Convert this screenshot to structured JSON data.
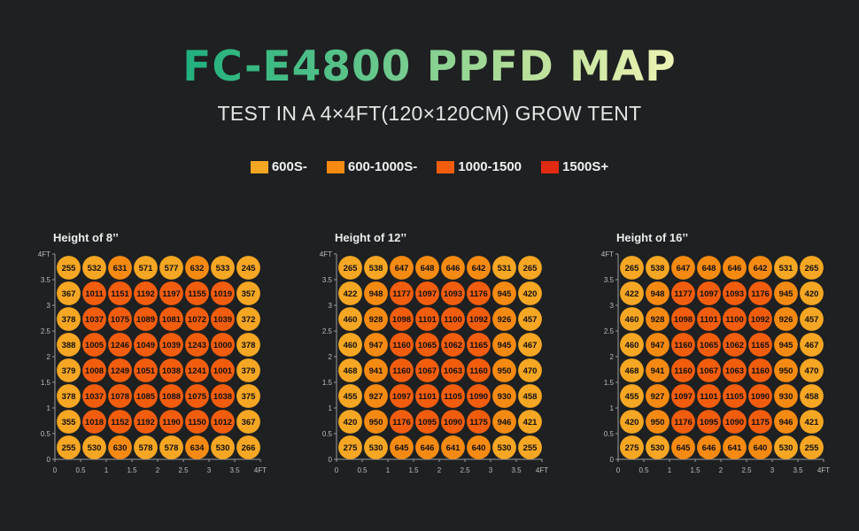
{
  "page": {
    "title": "FC-E4800 PPFD MAP",
    "subtitle": "TEST IN A 4×4FT(120×120CM) GROW TENT"
  },
  "legend": [
    {
      "label": "600S-",
      "color": "#f5a623"
    },
    {
      "label": "600-1000S-",
      "color": "#f58a12"
    },
    {
      "label": "1000-1500",
      "color": "#f25d0d"
    },
    {
      "label": "1500S+",
      "color": "#e02a12"
    }
  ],
  "chart_data": [
    {
      "type": "heatmap",
      "title": "Height of 8’’",
      "x_ticks": [
        "0",
        "0.5",
        "1",
        "1.5",
        "2",
        "2.5",
        "3",
        "3.5",
        "4FT"
      ],
      "y_ticks": [
        "0",
        "0.5",
        "1",
        "1.5",
        "2",
        "2.5",
        "3",
        "3.5",
        "4FT"
      ],
      "ylim": [
        0,
        4
      ],
      "xlim": [
        0,
        4
      ],
      "values": [
        [
          255,
          532,
          631,
          571,
          577,
          632,
          533,
          245
        ],
        [
          367,
          1011,
          1151,
          1192,
          1197,
          1155,
          1019,
          357
        ],
        [
          378,
          1037,
          1075,
          1089,
          1081,
          1072,
          1039,
          372
        ],
        [
          388,
          1005,
          1246,
          1049,
          1039,
          1243,
          1000,
          378
        ],
        [
          379,
          1008,
          1249,
          1051,
          1038,
          1241,
          1001,
          379
        ],
        [
          378,
          1037,
          1078,
          1085,
          1088,
          1075,
          1038,
          375
        ],
        [
          355,
          1018,
          1152,
          1192,
          1190,
          1150,
          1012,
          367
        ],
        [
          255,
          530,
          630,
          578,
          578,
          634,
          530,
          266
        ]
      ]
    },
    {
      "type": "heatmap",
      "title": "Height of 12’’",
      "x_ticks": [
        "0",
        "0.5",
        "1",
        "1.5",
        "2",
        "2.5",
        "3",
        "3.5",
        "4FT"
      ],
      "y_ticks": [
        "0",
        "0.5",
        "1",
        "1.5",
        "2",
        "2.5",
        "3",
        "3.5",
        "4FT"
      ],
      "ylim": [
        0,
        4
      ],
      "xlim": [
        0,
        4
      ],
      "values": [
        [
          265,
          538,
          647,
          648,
          646,
          642,
          531,
          265
        ],
        [
          422,
          948,
          1177,
          1097,
          1093,
          1176,
          945,
          420
        ],
        [
          460,
          928,
          1098,
          1101,
          1100,
          1092,
          926,
          457
        ],
        [
          460,
          947,
          1160,
          1065,
          1062,
          1165,
          945,
          467
        ],
        [
          468,
          941,
          1160,
          1067,
          1063,
          1160,
          950,
          470
        ],
        [
          455,
          927,
          1097,
          1101,
          1105,
          1090,
          930,
          458
        ],
        [
          420,
          950,
          1176,
          1095,
          1090,
          1175,
          946,
          421
        ],
        [
          275,
          530,
          645,
          646,
          641,
          640,
          530,
          255
        ]
      ]
    },
    {
      "type": "heatmap",
      "title": "Height of 16’’",
      "x_ticks": [
        "0",
        "0.5",
        "1",
        "1.5",
        "2",
        "2.5",
        "3",
        "3.5",
        "4FT"
      ],
      "y_ticks": [
        "0",
        "0.5",
        "1",
        "1.5",
        "2",
        "2.5",
        "3",
        "3.5",
        "4FT"
      ],
      "ylim": [
        0,
        4
      ],
      "xlim": [
        0,
        4
      ],
      "values": [
        [
          265,
          538,
          647,
          648,
          646,
          642,
          531,
          265
        ],
        [
          422,
          948,
          1177,
          1097,
          1093,
          1176,
          945,
          420
        ],
        [
          460,
          928,
          1098,
          1101,
          1100,
          1092,
          926,
          457
        ],
        [
          460,
          947,
          1160,
          1065,
          1062,
          1165,
          945,
          467
        ],
        [
          468,
          941,
          1160,
          1067,
          1063,
          1160,
          950,
          470
        ],
        [
          455,
          927,
          1097,
          1101,
          1105,
          1090,
          930,
          458
        ],
        [
          420,
          950,
          1176,
          1095,
          1090,
          1175,
          946,
          421
        ],
        [
          275,
          530,
          645,
          646,
          641,
          640,
          530,
          255
        ]
      ]
    }
  ]
}
